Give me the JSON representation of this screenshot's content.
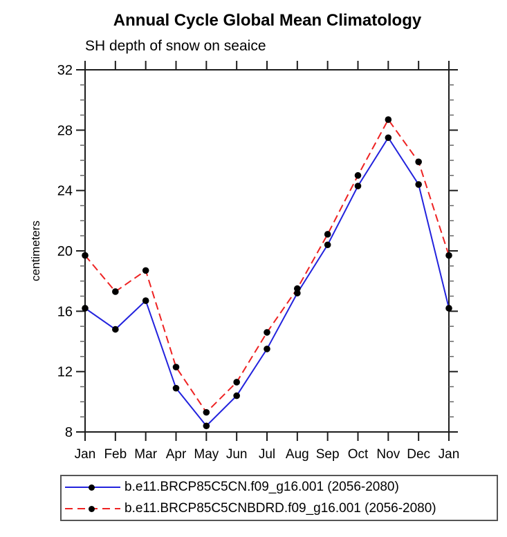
{
  "chart_data": {
    "type": "line",
    "title": "Annual Cycle Global Mean Climatology",
    "subtitle": "SH depth of snow on seaice",
    "xlabel": "",
    "ylabel": "centimeters",
    "categories": [
      "Jan",
      "Feb",
      "Mar",
      "Apr",
      "May",
      "Jun",
      "Jul",
      "Aug",
      "Sep",
      "Oct",
      "Nov",
      "Dec",
      "Jan"
    ],
    "ylim": [
      8,
      32
    ],
    "ytick_major": [
      8,
      12,
      16,
      20,
      24,
      28,
      32
    ],
    "ytick_minor_step": 1,
    "grid": false,
    "legend_position": "bottom",
    "series": [
      {
        "name": "b.e11.BRCP85C5CN.f09_g16.001 (2056-2080)",
        "color": "#2222dd",
        "style": "solid",
        "marker": "circle",
        "marker_color": "#000000",
        "values": [
          16.2,
          14.8,
          16.7,
          10.9,
          8.4,
          10.4,
          13.5,
          17.2,
          20.4,
          24.3,
          27.5,
          24.4,
          16.2
        ]
      },
      {
        "name": "b.e11.BRCP85C5CNBDRD.f09_g16.001 (2056-2080)",
        "color": "#ee2222",
        "style": "dashed",
        "marker": "circle",
        "marker_color": "#000000",
        "values": [
          19.7,
          17.3,
          18.7,
          12.3,
          9.3,
          11.3,
          14.6,
          17.5,
          21.1,
          25.0,
          28.7,
          25.9,
          19.7
        ]
      }
    ]
  },
  "colors": {
    "axis": "#1c1c1c",
    "minor_tick": "#666666",
    "legend_border": "#555555",
    "background": "#ffffff"
  }
}
